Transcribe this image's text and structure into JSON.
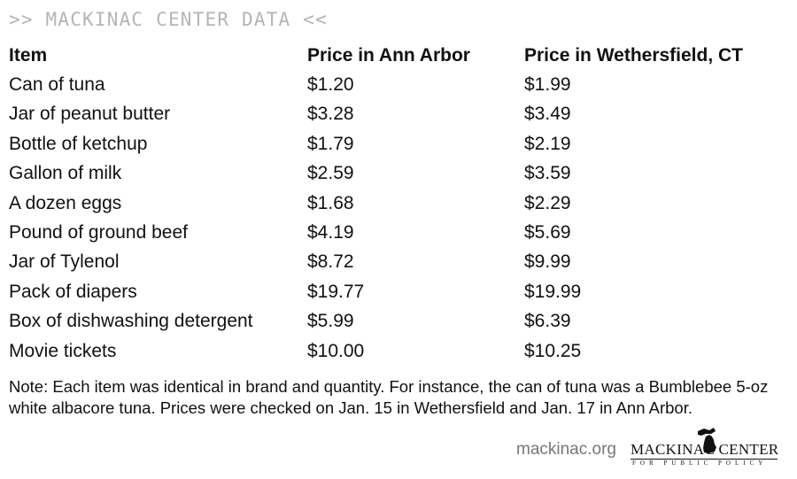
{
  "header": {
    "tag": ">> MACKINAC CENTER DATA <<"
  },
  "chart_data": {
    "type": "table",
    "columns": [
      "Item",
      "Price in Ann Arbor",
      "Price in Wethersfield, CT"
    ],
    "rows": [
      [
        "Can of tuna",
        "$1.20",
        "$1.99"
      ],
      [
        "Jar of peanut butter",
        "$3.28",
        "$3.49"
      ],
      [
        "Bottle of ketchup",
        "$1.79",
        "$2.19"
      ],
      [
        "Gallon of milk",
        "$2.59",
        "$3.59"
      ],
      [
        "A dozen eggs",
        "$1.68",
        "$2.29"
      ],
      [
        "Pound of ground beef",
        "$4.19",
        "$5.69"
      ],
      [
        "Jar of Tylenol",
        "$8.72",
        "$9.99"
      ],
      [
        "Pack of diapers",
        "$19.77",
        "$19.99"
      ],
      [
        "Box of dishwashing detergent",
        "$5.99",
        "$6.39"
      ],
      [
        "Movie tickets",
        "$10.00",
        "$10.25"
      ]
    ]
  },
  "note": "Note: Each item was identical in brand and quantity. For instance, the can of tuna was a Bumblebee 5-oz white albacore tuna. Prices were checked on Jan.  15 in Wethersfield and Jan. 17 in Ann Arbor.",
  "footer": {
    "site": "mackinac.org",
    "logo_main": "MACKINAC CENTER",
    "logo_sub": "FOR PUBLIC POLICY",
    "logo_icon": "michigan-map-icon"
  },
  "colors": {
    "header_tag": "#b5b5b5",
    "site_text": "#777777",
    "text": "#111111"
  }
}
